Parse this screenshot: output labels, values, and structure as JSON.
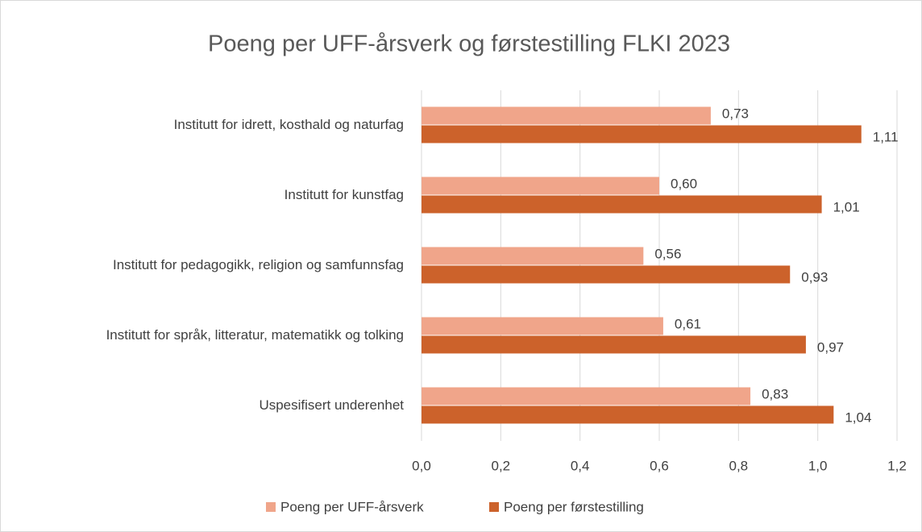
{
  "chart_data": {
    "type": "bar",
    "orientation": "horizontal",
    "title": "Poeng per UFF-årsverk og førstestilling FLKI 2023",
    "categories": [
      "Institutt for idrett, kosthald og naturfag",
      "Institutt for kunstfag",
      "Institutt for pedagogikk, religion og samfunnsfag",
      "Institutt for språk, litteratur, matematikk og tolking",
      "Uspesifisert underenhet"
    ],
    "series": [
      {
        "name": "Poeng per UFF-årsverk",
        "color": "#f0a58a",
        "values": [
          0.73,
          0.6,
          0.56,
          0.61,
          0.83
        ],
        "value_labels": [
          "0,73",
          "0,60",
          "0,56",
          "0,61",
          "0,83"
        ]
      },
      {
        "name": "Poeng per førstestilling",
        "color": "#cc622b",
        "values": [
          1.11,
          1.01,
          0.93,
          0.97,
          1.04
        ],
        "value_labels": [
          "1,11",
          "1,01",
          "0,93",
          "0,97",
          "1,04"
        ]
      }
    ],
    "xlim": [
      0,
      1.2
    ],
    "xticks": [
      {
        "value": 0,
        "label": "0,0"
      },
      {
        "value": 0.2,
        "label": "0,2"
      },
      {
        "value": 0.4,
        "label": "0,4"
      },
      {
        "value": 0.6,
        "label": "0,6"
      },
      {
        "value": 0.8,
        "label": "0,8"
      },
      {
        "value": 1.0,
        "label": "1,0"
      },
      {
        "value": 1.2,
        "label": "1,2"
      }
    ],
    "grid": true,
    "legend": "bottom"
  }
}
